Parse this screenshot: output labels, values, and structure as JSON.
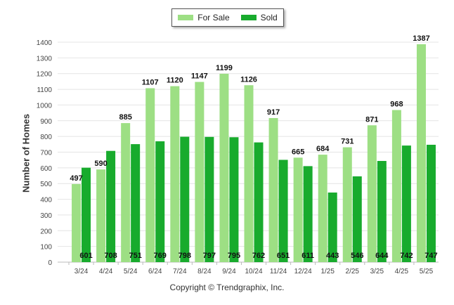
{
  "legend": {
    "for_sale": "For Sale",
    "sold": "Sold"
  },
  "colors": {
    "for_sale": "#9ddf84",
    "sold": "#18ab2d",
    "grid": "#e4e4e4"
  },
  "copyright": "Copyright © Trendgraphix, Inc.",
  "chart_data": {
    "type": "bar",
    "title": "",
    "xlabel": "",
    "ylabel": "Number of Homes",
    "ylim": [
      0,
      1400
    ],
    "yticks": [
      0,
      100,
      200,
      300,
      400,
      500,
      600,
      700,
      800,
      900,
      1000,
      1100,
      1200,
      1300,
      1400
    ],
    "grid": true,
    "legend_position": "top-center",
    "categories": [
      "3/24",
      "4/24",
      "5/24",
      "6/24",
      "7/24",
      "8/24",
      "9/24",
      "10/24",
      "11/24",
      "12/24",
      "1/25",
      "2/25",
      "3/25",
      "4/25",
      "5/25"
    ],
    "series": [
      {
        "name": "For Sale",
        "values": [
          497,
          590,
          885,
          1107,
          1120,
          1147,
          1199,
          1126,
          917,
          665,
          684,
          731,
          871,
          968,
          1387
        ]
      },
      {
        "name": "Sold",
        "values": [
          601,
          708,
          751,
          769,
          798,
          797,
          795,
          762,
          651,
          611,
          443,
          546,
          644,
          742,
          747
        ]
      }
    ]
  }
}
